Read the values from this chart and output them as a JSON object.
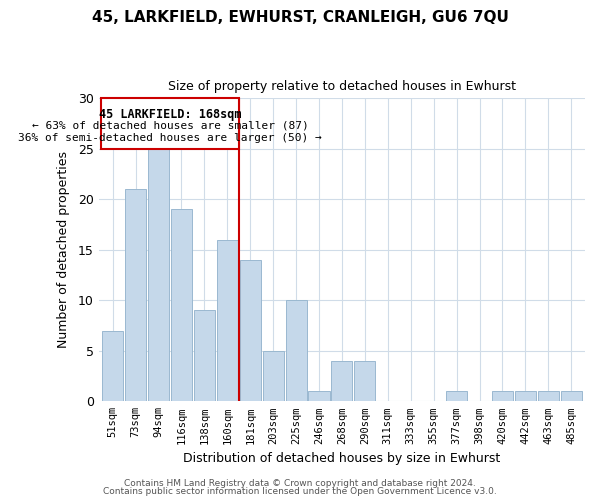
{
  "title": "45, LARKFIELD, EWHURST, CRANLEIGH, GU6 7QU",
  "subtitle": "Size of property relative to detached houses in Ewhurst",
  "xlabel": "Distribution of detached houses by size in Ewhurst",
  "ylabel": "Number of detached properties",
  "footer1": "Contains HM Land Registry data © Crown copyright and database right 2024.",
  "footer2": "Contains public sector information licensed under the Open Government Licence v3.0.",
  "bin_labels": [
    "51sqm",
    "73sqm",
    "94sqm",
    "116sqm",
    "138sqm",
    "160sqm",
    "181sqm",
    "203sqm",
    "225sqm",
    "246sqm",
    "268sqm",
    "290sqm",
    "311sqm",
    "333sqm",
    "355sqm",
    "377sqm",
    "398sqm",
    "420sqm",
    "442sqm",
    "463sqm",
    "485sqm"
  ],
  "bar_values": [
    7,
    21,
    25,
    19,
    9,
    16,
    14,
    5,
    10,
    1,
    4,
    4,
    0,
    0,
    0,
    1,
    0,
    1,
    1,
    1,
    1
  ],
  "bar_color": "#c5d8ea",
  "bar_edgecolor": "#9ab8d0",
  "vline_x_index": 5.5,
  "vline_color": "#cc0000",
  "annotation_title": "45 LARKFIELD: 168sqm",
  "annotation_line1": "← 63% of detached houses are smaller (87)",
  "annotation_line2": "36% of semi-detached houses are larger (50) →",
  "annotation_box_color": "#ffffff",
  "annotation_box_edgecolor": "#cc0000",
  "ylim": [
    0,
    30
  ],
  "yticks": [
    0,
    5,
    10,
    15,
    20,
    25,
    30
  ],
  "background_color": "#ffffff",
  "grid_color": "#d0dce8"
}
